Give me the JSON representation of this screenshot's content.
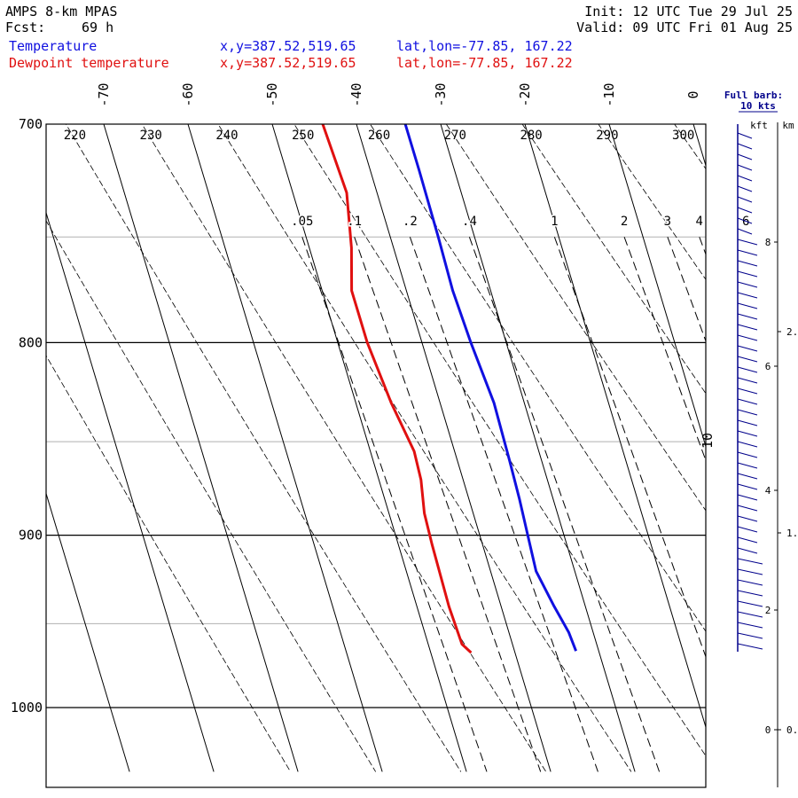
{
  "header": {
    "model": "AMPS 8-km MPAS",
    "fcst_label": "Fcst:",
    "fcst_value": "69 h",
    "init": "Init: 12 UTC Tue 29 Jul 25",
    "valid": "Valid: 09 UTC Fri 01 Aug 25",
    "temp_label": "Temperature",
    "dew_label": "Dewpoint temperature",
    "xy_text": "x,y=387.52,519.65",
    "latlon_text": "lat,lon=-77.85, 167.22"
  },
  "colors": {
    "temperature": "#1010e0",
    "dewpoint": "#e01010",
    "grid": "#000000",
    "minor_grid": "#b0b0b0"
  },
  "chart_data": {
    "type": "line",
    "pressure_axis": {
      "min": 700,
      "max": 1040,
      "ticks": [
        700,
        800,
        900,
        1000
      ],
      "minor": [
        750,
        850,
        950
      ]
    },
    "temperature_ticks": [
      -70,
      -60,
      -50,
      -40,
      -30,
      -20,
      -10,
      0
    ],
    "isotherm_label_10": "10",
    "dry_adiabat_labels": [
      "220",
      "230",
      "240",
      "250",
      "260",
      "270",
      "280",
      "290",
      "300"
    ],
    "mixing_ratio_labels": [
      ".05",
      ".1",
      ".2",
      ".4",
      "1",
      "2",
      "3",
      "4",
      "6"
    ],
    "series": [
      {
        "name": "Temperature",
        "pressure": [
          700,
          720,
          750,
          775,
          800,
          830,
          860,
          880,
          900,
          920,
          940,
          955,
          966
        ],
        "temp_c": [
          -34.2,
          -34.2,
          -34.3,
          -34.5,
          -34.2,
          -33.6,
          -33.8,
          -34.0,
          -34.3,
          -34.6,
          -33.7,
          -32.9,
          -32.7
        ]
      },
      {
        "name": "Dewpoint temperature",
        "pressure": [
          700,
          730,
          755,
          775,
          800,
          830,
          855,
          870,
          888,
          905,
          940,
          962,
          967
        ],
        "temp_c": [
          -44.0,
          -43.6,
          -45.0,
          -46.5,
          -46.5,
          -45.8,
          -44.8,
          -45.0,
          -45.8,
          -46.0,
          -46.2,
          -46.0,
          -45.2
        ]
      }
    ],
    "wind": {
      "title": "Full barb:",
      "subtitle": "10 kts",
      "kft_label": "kft",
      "km_label": "km",
      "kft_ticks": [
        "8",
        "6",
        "4",
        "2",
        "0"
      ],
      "km_ticks": [
        "2.",
        "1.",
        "0."
      ]
    }
  }
}
